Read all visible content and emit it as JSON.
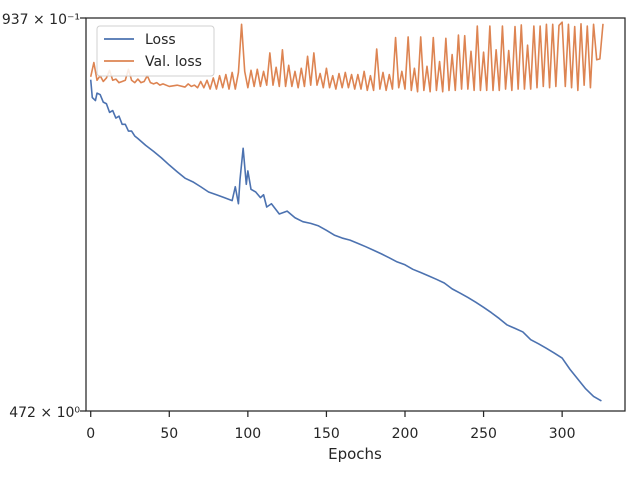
{
  "chart_data": {
    "type": "line",
    "title": "",
    "xlabel": "Epochs",
    "ylabel": "",
    "yscale": "log",
    "xlim": [
      -3,
      340
    ],
    "ylim_labels": {
      "top": "937 × 10⁻¹",
      "bottom": "472 × 10⁰"
    },
    "x_ticks": [
      0,
      50,
      100,
      150,
      200,
      250,
      300
    ],
    "legend_location": "top-left",
    "grid": false,
    "series": [
      {
        "name": "Loss",
        "color": "#4c72b0",
        "points": [
          [
            0,
            0.625
          ],
          [
            1,
            0.49
          ],
          [
            3,
            0.47
          ],
          [
            4,
            0.52
          ],
          [
            6,
            0.51
          ],
          [
            8,
            0.46
          ],
          [
            10,
            0.45
          ],
          [
            12,
            0.4
          ],
          [
            14,
            0.41
          ],
          [
            16,
            0.37
          ],
          [
            18,
            0.38
          ],
          [
            20,
            0.34
          ],
          [
            22,
            0.34
          ],
          [
            24,
            0.31
          ],
          [
            26,
            0.31
          ],
          [
            28,
            0.29
          ],
          [
            30,
            0.28
          ],
          [
            35,
            0.255
          ],
          [
            40,
            0.235
          ],
          [
            45,
            0.215
          ],
          [
            50,
            0.195
          ],
          [
            55,
            0.178
          ],
          [
            60,
            0.163
          ],
          [
            65,
            0.155
          ],
          [
            70,
            0.145
          ],
          [
            75,
            0.135
          ],
          [
            80,
            0.13
          ],
          [
            85,
            0.125
          ],
          [
            90,
            0.12
          ],
          [
            92,
            0.145
          ],
          [
            94,
            0.115
          ],
          [
            95,
            0.16
          ],
          [
            97,
            0.245
          ],
          [
            99,
            0.15
          ],
          [
            100,
            0.18
          ],
          [
            102,
            0.14
          ],
          [
            105,
            0.135
          ],
          [
            108,
            0.125
          ],
          [
            110,
            0.13
          ],
          [
            112,
            0.11
          ],
          [
            115,
            0.115
          ],
          [
            120,
            0.1
          ],
          [
            125,
            0.104
          ],
          [
            130,
            0.095
          ],
          [
            135,
            0.09
          ],
          [
            140,
            0.088
          ],
          [
            145,
            0.085
          ],
          [
            150,
            0.08
          ],
          [
            155,
            0.075
          ],
          [
            160,
            0.072
          ],
          [
            165,
            0.07
          ],
          [
            170,
            0.067
          ],
          [
            175,
            0.064
          ],
          [
            180,
            0.061
          ],
          [
            185,
            0.058
          ],
          [
            190,
            0.055
          ],
          [
            195,
            0.052
          ],
          [
            200,
            0.05
          ],
          [
            205,
            0.047
          ],
          [
            210,
            0.045
          ],
          [
            215,
            0.043
          ],
          [
            220,
            0.041
          ],
          [
            225,
            0.039
          ],
          [
            230,
            0.036
          ],
          [
            235,
            0.034
          ],
          [
            240,
            0.032
          ],
          [
            245,
            0.03
          ],
          [
            250,
            0.028
          ],
          [
            255,
            0.026
          ],
          [
            260,
            0.024
          ],
          [
            265,
            0.022
          ],
          [
            270,
            0.021
          ],
          [
            275,
            0.02
          ],
          [
            280,
            0.018
          ],
          [
            285,
            0.017
          ],
          [
            290,
            0.016
          ],
          [
            295,
            0.015
          ],
          [
            300,
            0.014
          ],
          [
            305,
            0.012
          ],
          [
            310,
            0.0105
          ],
          [
            315,
            0.0092
          ],
          [
            320,
            0.0083
          ],
          [
            325,
            0.0078
          ]
        ]
      },
      {
        "name": "Val. loss",
        "color": "#dd8452",
        "points": [
          [
            0,
            0.65
          ],
          [
            2,
            0.79
          ],
          [
            4,
            0.62
          ],
          [
            6,
            0.66
          ],
          [
            8,
            0.61
          ],
          [
            10,
            0.64
          ],
          [
            12,
            0.71
          ],
          [
            14,
            0.62
          ],
          [
            16,
            0.63
          ],
          [
            18,
            0.6
          ],
          [
            20,
            0.61
          ],
          [
            22,
            0.62
          ],
          [
            24,
            0.72
          ],
          [
            26,
            0.62
          ],
          [
            28,
            0.6
          ],
          [
            30,
            0.63
          ],
          [
            32,
            0.6
          ],
          [
            34,
            0.61
          ],
          [
            36,
            0.66
          ],
          [
            38,
            0.6
          ],
          [
            40,
            0.59
          ],
          [
            42,
            0.6
          ],
          [
            44,
            0.58
          ],
          [
            46,
            0.59
          ],
          [
            50,
            0.57
          ],
          [
            55,
            0.58
          ],
          [
            60,
            0.565
          ],
          [
            62,
            0.59
          ],
          [
            64,
            0.57
          ],
          [
            66,
            0.58
          ],
          [
            68,
            0.56
          ],
          [
            70,
            0.61
          ],
          [
            72,
            0.56
          ],
          [
            74,
            0.62
          ],
          [
            76,
            0.55
          ],
          [
            78,
            0.64
          ],
          [
            80,
            0.55
          ],
          [
            82,
            0.66
          ],
          [
            84,
            0.56
          ],
          [
            86,
            0.67
          ],
          [
            88,
            0.55
          ],
          [
            90,
            0.69
          ],
          [
            92,
            0.55
          ],
          [
            94,
            0.69
          ],
          [
            96,
            1.33
          ],
          [
            98,
            0.7
          ],
          [
            100,
            0.56
          ],
          [
            102,
            0.71
          ],
          [
            104,
            0.57
          ],
          [
            106,
            0.72
          ],
          [
            108,
            0.57
          ],
          [
            110,
            0.7
          ],
          [
            112,
            0.58
          ],
          [
            114,
            0.9
          ],
          [
            116,
            0.58
          ],
          [
            118,
            0.74
          ],
          [
            120,
            0.57
          ],
          [
            122,
            0.94
          ],
          [
            124,
            0.57
          ],
          [
            126,
            0.76
          ],
          [
            128,
            0.57
          ],
          [
            130,
            0.7
          ],
          [
            132,
            0.56
          ],
          [
            134,
            0.73
          ],
          [
            136,
            0.57
          ],
          [
            138,
            0.86
          ],
          [
            140,
            0.58
          ],
          [
            142,
            0.9
          ],
          [
            144,
            0.58
          ],
          [
            146,
            0.68
          ],
          [
            148,
            0.56
          ],
          [
            150,
            0.73
          ],
          [
            152,
            0.56
          ],
          [
            154,
            0.66
          ],
          [
            156,
            0.55
          ],
          [
            158,
            0.68
          ],
          [
            160,
            0.56
          ],
          [
            162,
            0.69
          ],
          [
            164,
            0.56
          ],
          [
            166,
            0.67
          ],
          [
            168,
            0.55
          ],
          [
            170,
            0.67
          ],
          [
            172,
            0.55
          ],
          [
            174,
            0.7
          ],
          [
            176,
            0.54
          ],
          [
            178,
            0.66
          ],
          [
            180,
            0.54
          ],
          [
            182,
            0.95
          ],
          [
            184,
            0.55
          ],
          [
            186,
            0.69
          ],
          [
            188,
            0.54
          ],
          [
            190,
            0.67
          ],
          [
            192,
            0.55
          ],
          [
            194,
            1.11
          ],
          [
            196,
            0.56
          ],
          [
            198,
            0.7
          ],
          [
            200,
            0.55
          ],
          [
            202,
            1.12
          ],
          [
            204,
            0.54
          ],
          [
            206,
            0.73
          ],
          [
            208,
            0.53
          ],
          [
            210,
            1.12
          ],
          [
            212,
            0.54
          ],
          [
            214,
            0.75
          ],
          [
            216,
            0.53
          ],
          [
            218,
            1.11
          ],
          [
            220,
            0.54
          ],
          [
            222,
            0.8
          ],
          [
            224,
            0.53
          ],
          [
            226,
            1.1
          ],
          [
            228,
            0.54
          ],
          [
            230,
            0.88
          ],
          [
            232,
            0.54
          ],
          [
            234,
            1.15
          ],
          [
            236,
            0.55
          ],
          [
            238,
            1.14
          ],
          [
            240,
            0.55
          ],
          [
            242,
            0.92
          ],
          [
            244,
            0.54
          ],
          [
            246,
            1.3
          ],
          [
            248,
            0.54
          ],
          [
            250,
            0.91
          ],
          [
            252,
            0.54
          ],
          [
            254,
            1.3
          ],
          [
            256,
            0.54
          ],
          [
            258,
            0.94
          ],
          [
            260,
            0.54
          ],
          [
            262,
            1.3
          ],
          [
            264,
            0.55
          ],
          [
            266,
            0.93
          ],
          [
            268,
            0.54
          ],
          [
            270,
            1.29
          ],
          [
            272,
            0.55
          ],
          [
            274,
            1.32
          ],
          [
            276,
            0.55
          ],
          [
            278,
            1.0
          ],
          [
            280,
            0.55
          ],
          [
            282,
            1.3
          ],
          [
            284,
            0.56
          ],
          [
            286,
            1.3
          ],
          [
            288,
            0.57
          ],
          [
            290,
            1.33
          ],
          [
            292,
            0.56
          ],
          [
            294,
            1.33
          ],
          [
            296,
            0.57
          ],
          [
            298,
            1.31
          ],
          [
            300,
            1.37
          ],
          [
            302,
            0.57
          ],
          [
            304,
            1.33
          ],
          [
            306,
            0.56
          ],
          [
            308,
            1.29
          ],
          [
            310,
            0.54
          ],
          [
            312,
            1.34
          ],
          [
            314,
            0.58
          ],
          [
            316,
            1.3
          ],
          [
            318,
            0.56
          ],
          [
            320,
            1.33
          ],
          [
            322,
            0.82
          ],
          [
            324,
            0.83
          ],
          [
            326,
            1.34
          ]
        ]
      }
    ]
  }
}
